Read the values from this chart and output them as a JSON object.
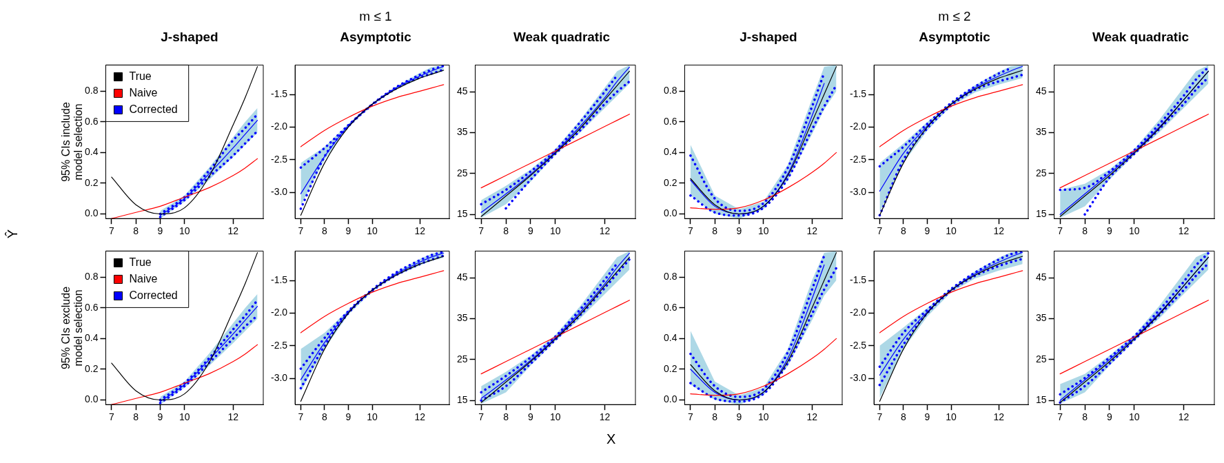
{
  "chart_data": [
    {
      "type": "line",
      "title": "J-shaped",
      "ylabel": "95% CIs include model selection",
      "annotations": [
        "Ŷ"
      ],
      "legend": "top left",
      "marker": "none",
      "x": [
        7,
        8,
        9,
        10,
        11,
        12,
        12.5,
        13
      ],
      "xlim": [
        6.76,
        13.24
      ],
      "xticks": [
        7,
        8,
        9,
        10,
        12
      ],
      "ylim": [
        -0.03,
        0.97
      ],
      "yticks": [
        {
          "value": 0,
          "label": "0.0"
        },
        0.2,
        0.4,
        0.6,
        0.8
      ],
      "series": [
        {
          "name": "True",
          "color": "#000000",
          "values": [
            0.24,
            0.06,
            0.0,
            0.04,
            0.24,
            0.58,
            0.76,
            0.96
          ]
        },
        {
          "name": "Naive",
          "color": "#ff0000",
          "values": [
            -0.03,
            0.01,
            0.05,
            0.11,
            0.17,
            0.25,
            0.3,
            0.36
          ]
        },
        {
          "name": "Corrected",
          "color": "#0000ff",
          "values": [
            null,
            null,
            -0.01,
            0.1,
            0.26,
            0.43,
            0.52,
            0.61
          ],
          "lower": [
            null,
            null,
            -0.03,
            0.08,
            0.22,
            0.37,
            0.45,
            0.53
          ],
          "upper": [
            null,
            null,
            0.02,
            0.12,
            0.3,
            0.5,
            0.6,
            0.69
          ]
        },
        {
          "color": "#0000ff",
          "line_style": "dotted",
          "values": [
            null,
            null,
            -0.02,
            0.09,
            0.24,
            0.38,
            0.46,
            0.54
          ]
        },
        {
          "color": "#0000ff",
          "line_style": "dotted",
          "values": [
            null,
            null,
            0.0,
            0.11,
            0.28,
            0.48,
            0.56,
            0.65
          ]
        }
      ]
    },
    {
      "type": "line",
      "title": "Asymptotic",
      "annotations": [
        "m ≤ 1"
      ],
      "marker": "none",
      "x": [
        7,
        8,
        9,
        10,
        11,
        12,
        12.5,
        13
      ],
      "xlim": [
        6.76,
        13.24
      ],
      "xticks": [
        7,
        8,
        9,
        10,
        12
      ],
      "ylim": [
        -3.4,
        -1.05
      ],
      "yticks": [
        {
          "value": -3,
          "label": "-3.0"
        },
        -2.5,
        {
          "value": -2,
          "label": "-2.0"
        },
        -1.5
      ],
      "series": [
        {
          "color": "#000000",
          "values": [
            -3.35,
            -2.55,
            -2.0,
            -1.65,
            -1.42,
            -1.25,
            -1.19,
            -1.13
          ]
        },
        {
          "color": "#ff0000",
          "values": [
            -2.3,
            -2.05,
            -1.85,
            -1.68,
            -1.55,
            -1.45,
            -1.4,
            -1.35
          ]
        },
        {
          "color": "#0000ff",
          "values": [
            -3.02,
            -2.45,
            -1.98,
            -1.65,
            -1.4,
            -1.22,
            -1.14,
            -1.07
          ],
          "lower": [
            -3.2,
            -2.5,
            -2.0,
            -1.66,
            -1.42,
            -1.26,
            -1.2,
            -1.14
          ],
          "upper": [
            -2.55,
            -2.3,
            -1.95,
            -1.64,
            -1.38,
            -1.17,
            -1.08,
            -1.05
          ]
        },
        {
          "color": "#0000ff",
          "line_style": "dotted",
          "values": [
            -3.25,
            -2.45,
            -1.99,
            -1.66,
            -1.41,
            -1.24,
            -1.18,
            -1.12
          ]
        },
        {
          "color": "#0000ff",
          "line_style": "dotted",
          "values": [
            -2.62,
            -2.32,
            -1.97,
            -1.65,
            -1.39,
            -1.2,
            -1.12,
            -1.06
          ]
        }
      ]
    },
    {
      "type": "line",
      "title": "Weak quadratic",
      "marker": "none",
      "x": [
        7,
        8,
        9,
        10,
        11,
        12,
        12.5,
        13
      ],
      "xlim": [
        6.76,
        13.24
      ],
      "xticks": [
        7,
        8,
        9,
        10,
        12
      ],
      "ylim": [
        14,
        51.5
      ],
      "yticks": [
        15,
        25,
        35,
        45
      ],
      "series": [
        {
          "color": "#000000",
          "values": [
            14.5,
            19.5,
            24.5,
            30,
            36,
            43,
            46.5,
            50
          ]
        },
        {
          "color": "#ff0000",
          "values": [
            21.5,
            24.5,
            27.5,
            30.5,
            33.5,
            36.5,
            38,
            39.5
          ]
        },
        {
          "color": "#0000ff",
          "values": [
            15.5,
            20,
            24.8,
            30.3,
            36.5,
            43.5,
            47.5,
            51
          ],
          "lower": [
            14.2,
            17.5,
            23,
            29.5,
            35,
            41,
            44,
            47
          ],
          "upper": [
            18.5,
            22,
            26,
            31,
            38,
            46,
            50,
            51.5
          ]
        },
        {
          "color": "#0000ff",
          "line_style": "dotted",
          "values": [
            null,
            16.5,
            23.5,
            29.8,
            35.5,
            42,
            45,
            47.5
          ]
        },
        {
          "color": "#0000ff",
          "line_style": "dotted",
          "values": [
            17.5,
            21,
            25.5,
            30.6,
            37.5,
            45,
            49,
            null
          ]
        }
      ]
    },
    {
      "type": "line",
      "title": "J-shaped",
      "marker": "none",
      "x": [
        7,
        8,
        9,
        10,
        11,
        12,
        12.5,
        13
      ],
      "xlim": [
        6.76,
        13.24
      ],
      "xticks": [
        7,
        8,
        9,
        10,
        12
      ],
      "ylim": [
        -0.03,
        0.97
      ],
      "yticks": [
        {
          "value": 0,
          "label": "0.0"
        },
        0.2,
        0.4,
        0.6,
        0.8
      ],
      "series": [
        {
          "color": "#000000",
          "values": [
            0.23,
            0.06,
            0.0,
            0.05,
            0.25,
            0.6,
            0.78,
            0.96
          ]
        },
        {
          "color": "#ff0000",
          "values": [
            0.04,
            0.03,
            0.04,
            0.09,
            0.17,
            0.27,
            0.33,
            0.4
          ]
        },
        {
          "color": "#0000ff",
          "values": [
            0.22,
            0.05,
            0.0,
            0.05,
            0.26,
            0.64,
            0.85,
            null
          ],
          "lower": [
            0.12,
            0.0,
            -0.03,
            0.03,
            0.22,
            0.52,
            0.68,
            0.8
          ],
          "upper": [
            0.45,
            0.12,
            0.03,
            0.08,
            0.32,
            0.75,
            0.96,
            0.97
          ]
        },
        {
          "color": "#0000ff",
          "line_style": "dotted",
          "values": [
            0.12,
            0.01,
            -0.01,
            0.04,
            0.23,
            0.55,
            0.7,
            0.84
          ]
        },
        {
          "color": "#0000ff",
          "line_style": "dotted",
          "values": [
            0.38,
            0.1,
            0.02,
            0.07,
            0.3,
            0.7,
            0.92,
            null
          ]
        }
      ]
    },
    {
      "type": "line",
      "title": "Asymptotic",
      "annotations": [
        "m ≤ 2"
      ],
      "marker": "none",
      "x": [
        7,
        8,
        9,
        10,
        11,
        12,
        12.5,
        13
      ],
      "xlim": [
        6.76,
        13.24
      ],
      "xticks": [
        7,
        8,
        9,
        10,
        12
      ],
      "ylim": [
        -3.4,
        -1.05
      ],
      "yticks": [
        {
          "value": -3,
          "label": "-3.0"
        },
        -2.5,
        {
          "value": -2,
          "label": "-2.0"
        },
        -1.5
      ],
      "series": [
        {
          "color": "#000000",
          "values": [
            -3.35,
            -2.55,
            -2.0,
            -1.65,
            -1.42,
            -1.25,
            -1.19,
            -1.13
          ]
        },
        {
          "color": "#ff0000",
          "values": [
            -2.3,
            -2.05,
            -1.85,
            -1.68,
            -1.55,
            -1.45,
            -1.4,
            -1.35
          ]
        },
        {
          "color": "#0000ff",
          "values": [
            -2.98,
            -2.4,
            -1.98,
            -1.65,
            -1.4,
            -1.22,
            -1.14,
            -1.07
          ],
          "lower": [
            -3.3,
            -2.55,
            -2.05,
            -1.68,
            -1.47,
            -1.35,
            -1.3,
            -1.25
          ],
          "upper": [
            -2.55,
            -2.25,
            -1.92,
            -1.62,
            -1.36,
            -1.15,
            -1.07,
            -1.05
          ]
        },
        {
          "color": "#0000ff",
          "line_style": "dotted",
          "values": [
            -3.35,
            -2.5,
            -2.02,
            -1.67,
            -1.43,
            -1.3,
            -1.25,
            -1.2
          ]
        },
        {
          "color": "#0000ff",
          "line_style": "dotted",
          "values": [
            -2.6,
            -2.3,
            -1.95,
            -1.63,
            -1.38,
            -1.18,
            -1.1,
            null
          ]
        }
      ]
    },
    {
      "type": "line",
      "title": "Weak quadratic",
      "marker": "none",
      "x": [
        7,
        8,
        9,
        10,
        11,
        12,
        12.5,
        13
      ],
      "xlim": [
        6.76,
        13.24
      ],
      "xticks": [
        7,
        8,
        9,
        10,
        12
      ],
      "ylim": [
        14,
        51.5
      ],
      "yticks": [
        15,
        25,
        35,
        45
      ],
      "series": [
        {
          "color": "#000000",
          "values": [
            14.5,
            19.5,
            24.5,
            30,
            36,
            43,
            46.5,
            50
          ]
        },
        {
          "color": "#ff0000",
          "values": [
            21.5,
            24.5,
            27.5,
            30.5,
            33.5,
            36.5,
            38,
            39.5
          ]
        },
        {
          "color": "#0000ff",
          "values": [
            15,
            20,
            25,
            30.3,
            36.3,
            43,
            46.5,
            50
          ],
          "lower": [
            14.2,
            17,
            23.5,
            29.5,
            35,
            41,
            44,
            47
          ],
          "upper": [
            21,
            22.5,
            26,
            31,
            38,
            46,
            50,
            51.5
          ]
        },
        {
          "color": "#0000ff",
          "line_style": "dotted",
          "values": [
            null,
            15,
            24,
            29.8,
            35.8,
            42,
            45.5,
            48.5
          ]
        },
        {
          "color": "#0000ff",
          "line_style": "dotted",
          "values": [
            21,
            21.5,
            25.5,
            30.7,
            37,
            44,
            48,
            51
          ]
        }
      ]
    },
    {
      "type": "line",
      "ylabel": "95% CIs exclude model selection",
      "legend": "top left",
      "marker": "none",
      "x": [
        7,
        8,
        9,
        10,
        11,
        12,
        12.5,
        13
      ],
      "xlim": [
        6.76,
        13.24
      ],
      "xticks": [
        7,
        8,
        9,
        10,
        12
      ],
      "ylim": [
        -0.03,
        0.97
      ],
      "yticks": [
        {
          "value": 0,
          "label": "0.0"
        },
        0.2,
        0.4,
        0.6,
        0.8
      ],
      "series": [
        {
          "name": "True",
          "color": "#000000",
          "values": [
            0.24,
            0.06,
            0.0,
            0.04,
            0.24,
            0.58,
            0.76,
            0.96
          ]
        },
        {
          "name": "Naive",
          "color": "#ff0000",
          "values": [
            -0.03,
            0.01,
            0.05,
            0.11,
            0.17,
            0.25,
            0.3,
            0.36
          ]
        },
        {
          "name": "Corrected",
          "color": "#0000ff",
          "values": [
            null,
            null,
            -0.01,
            0.1,
            0.26,
            0.43,
            0.52,
            0.61
          ],
          "lower": [
            null,
            null,
            -0.03,
            0.08,
            0.22,
            0.37,
            0.45,
            0.53
          ],
          "upper": [
            null,
            null,
            0.02,
            0.12,
            0.3,
            0.5,
            0.6,
            0.69
          ]
        },
        {
          "color": "#0000ff",
          "line_style": "dotted",
          "values": [
            null,
            null,
            -0.02,
            0.09,
            0.24,
            0.4,
            0.48,
            0.55
          ]
        },
        {
          "color": "#0000ff",
          "line_style": "dotted",
          "values": [
            null,
            null,
            0.0,
            0.11,
            0.27,
            0.46,
            0.55,
            0.65
          ]
        }
      ]
    },
    {
      "type": "line",
      "marker": "none",
      "x": [
        7,
        8,
        9,
        10,
        11,
        12,
        12.5,
        13
      ],
      "xlim": [
        6.76,
        13.24
      ],
      "xticks": [
        7,
        8,
        9,
        10,
        12
      ],
      "ylim": [
        -3.4,
        -1.05
      ],
      "yticks": [
        {
          "value": -3,
          "label": "-3.0"
        },
        -2.5,
        {
          "value": -2,
          "label": "-2.0"
        },
        -1.5
      ],
      "series": [
        {
          "color": "#000000",
          "values": [
            -3.35,
            -2.55,
            -2.0,
            -1.65,
            -1.42,
            -1.25,
            -1.19,
            -1.13
          ]
        },
        {
          "color": "#ff0000",
          "values": [
            -2.3,
            -2.05,
            -1.85,
            -1.68,
            -1.55,
            -1.45,
            -1.4,
            -1.35
          ]
        },
        {
          "color": "#0000ff",
          "values": [
            -3.02,
            -2.45,
            -1.98,
            -1.65,
            -1.4,
            -1.22,
            -1.14,
            -1.08
          ],
          "lower": [
            -3.2,
            -2.55,
            -2.02,
            -1.67,
            -1.43,
            -1.27,
            -1.2,
            -1.15
          ],
          "upper": [
            -2.55,
            -2.3,
            -1.95,
            -1.63,
            -1.37,
            -1.17,
            -1.09,
            -1.05
          ]
        },
        {
          "color": "#0000ff",
          "line_style": "dotted",
          "values": [
            -3.15,
            -2.5,
            -2.0,
            -1.66,
            -1.42,
            -1.25,
            -1.18,
            -1.12
          ]
        },
        {
          "color": "#0000ff",
          "line_style": "dotted",
          "values": [
            -2.85,
            -2.38,
            -1.97,
            -1.64,
            -1.38,
            -1.19,
            -1.11,
            -1.06
          ]
        }
      ]
    },
    {
      "type": "line",
      "marker": "none",
      "x": [
        7,
        8,
        9,
        10,
        11,
        12,
        12.5,
        13
      ],
      "xlim": [
        6.76,
        13.24
      ],
      "xticks": [
        7,
        8,
        9,
        10,
        12
      ],
      "ylim": [
        14,
        51.5
      ],
      "yticks": [
        15,
        25,
        35,
        45
      ],
      "series": [
        {
          "color": "#000000",
          "values": [
            14.5,
            19.5,
            24.5,
            30,
            36,
            43,
            46.5,
            50
          ]
        },
        {
          "color": "#ff0000",
          "values": [
            21.5,
            24.5,
            27.5,
            30.5,
            33.5,
            36.5,
            38,
            39.5
          ]
        },
        {
          "color": "#0000ff",
          "values": [
            15.5,
            20,
            24.8,
            30.3,
            36.5,
            43.5,
            47.5,
            51
          ],
          "lower": [
            14.2,
            17,
            23.5,
            29.5,
            35,
            41,
            44,
            47
          ],
          "upper": [
            18.5,
            22,
            26,
            31,
            38,
            46,
            50,
            51.5
          ]
        },
        {
          "color": "#0000ff",
          "line_style": "dotted",
          "values": [
            15,
            18.5,
            24,
            29.8,
            35.8,
            42.5,
            46,
            49.5
          ]
        },
        {
          "color": "#0000ff",
          "line_style": "dotted",
          "values": [
            17,
            21,
            25.5,
            30.6,
            37.2,
            44.5,
            48.5,
            null
          ]
        }
      ]
    },
    {
      "type": "line",
      "annotations": [
        "X"
      ],
      "marker": "none",
      "x": [
        7,
        8,
        9,
        10,
        11,
        12,
        12.5,
        13
      ],
      "xlim": [
        6.76,
        13.24
      ],
      "xticks": [
        7,
        8,
        9,
        10,
        12
      ],
      "ylim": [
        -0.03,
        0.97
      ],
      "yticks": [
        {
          "value": 0,
          "label": "0.0"
        },
        0.2,
        0.4,
        0.6,
        0.8
      ],
      "series": [
        {
          "color": "#000000",
          "values": [
            0.23,
            0.06,
            0.0,
            0.05,
            0.25,
            0.6,
            0.78,
            0.96
          ]
        },
        {
          "color": "#ff0000",
          "values": [
            0.04,
            0.03,
            0.04,
            0.09,
            0.17,
            0.27,
            0.33,
            0.4
          ]
        },
        {
          "color": "#0000ff",
          "values": [
            0.2,
            0.05,
            0.0,
            0.05,
            0.27,
            0.66,
            0.88,
            null
          ],
          "lower": [
            0.1,
            0.0,
            -0.03,
            0.03,
            0.22,
            0.52,
            0.68,
            0.78
          ],
          "upper": [
            0.45,
            0.12,
            0.03,
            0.08,
            0.33,
            0.78,
            0.96,
            0.97
          ]
        },
        {
          "color": "#0000ff",
          "line_style": "dotted",
          "values": [
            0.11,
            0.01,
            -0.01,
            0.04,
            0.24,
            0.56,
            0.72,
            0.86
          ]
        },
        {
          "color": "#0000ff",
          "line_style": "dotted",
          "values": [
            0.3,
            0.09,
            0.02,
            0.07,
            0.31,
            0.72,
            0.94,
            null
          ]
        }
      ]
    },
    {
      "type": "line",
      "marker": "none",
      "x": [
        7,
        8,
        9,
        10,
        11,
        12,
        12.5,
        13
      ],
      "xlim": [
        6.76,
        13.24
      ],
      "xticks": [
        7,
        8,
        9,
        10,
        12
      ],
      "ylim": [
        -3.4,
        -1.05
      ],
      "yticks": [
        {
          "value": -3,
          "label": "-3.0"
        },
        -2.5,
        {
          "value": -2,
          "label": "-2.0"
        },
        -1.5
      ],
      "series": [
        {
          "color": "#000000",
          "values": [
            -3.35,
            -2.55,
            -2.0,
            -1.65,
            -1.42,
            -1.25,
            -1.19,
            -1.13
          ]
        },
        {
          "color": "#ff0000",
          "values": [
            -2.3,
            -2.05,
            -1.85,
            -1.68,
            -1.55,
            -1.45,
            -1.4,
            -1.35
          ]
        },
        {
          "color": "#0000ff",
          "values": [
            -2.95,
            -2.4,
            -1.98,
            -1.65,
            -1.4,
            -1.22,
            -1.14,
            -1.07
          ],
          "lower": [
            -3.3,
            -2.55,
            -2.05,
            -1.68,
            -1.47,
            -1.35,
            -1.3,
            -1.25
          ],
          "upper": [
            -2.5,
            -2.22,
            -1.92,
            -1.62,
            -1.36,
            -1.15,
            -1.07,
            -1.05
          ]
        },
        {
          "color": "#0000ff",
          "line_style": "dotted",
          "values": [
            -3.1,
            -2.48,
            -2.0,
            -1.66,
            -1.43,
            -1.28,
            -1.22,
            -1.17
          ]
        },
        {
          "color": "#0000ff",
          "line_style": "dotted",
          "values": [
            -2.82,
            -2.3,
            -1.95,
            -1.63,
            -1.38,
            -1.18,
            -1.1,
            -1.05
          ]
        }
      ]
    },
    {
      "type": "line",
      "marker": "none",
      "x": [
        7,
        8,
        9,
        10,
        11,
        12,
        12.5,
        13
      ],
      "xlim": [
        6.76,
        13.24
      ],
      "xticks": [
        7,
        8,
        9,
        10,
        12
      ],
      "ylim": [
        14,
        51.5
      ],
      "yticks": [
        15,
        25,
        35,
        45
      ],
      "series": [
        {
          "color": "#000000",
          "values": [
            14.5,
            19.5,
            24.5,
            30,
            36,
            43,
            46.5,
            50
          ]
        },
        {
          "color": "#ff0000",
          "values": [
            21.5,
            24.5,
            27.5,
            30.5,
            33.5,
            36.5,
            38,
            39.5
          ]
        },
        {
          "color": "#0000ff",
          "values": [
            15,
            20,
            25,
            30.3,
            36.3,
            43,
            46.5,
            50
          ],
          "lower": [
            14.2,
            17,
            23.5,
            29.5,
            35,
            41,
            44,
            47
          ],
          "upper": [
            19,
            21.5,
            26,
            31,
            38,
            46,
            50,
            51.5
          ]
        },
        {
          "color": "#0000ff",
          "line_style": "dotted",
          "values": [
            14.5,
            18.5,
            24,
            29.8,
            35.8,
            42,
            45.5,
            48.5
          ]
        },
        {
          "color": "#0000ff",
          "line_style": "dotted",
          "values": [
            16.5,
            20.5,
            25.5,
            30.7,
            37,
            44,
            48,
            51
          ]
        }
      ]
    }
  ]
}
